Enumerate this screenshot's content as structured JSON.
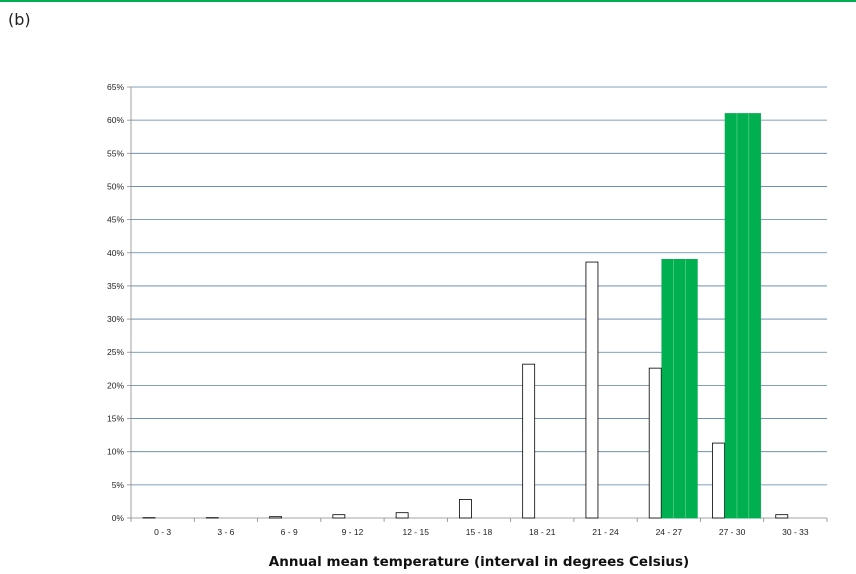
{
  "panel_label": "(b)",
  "chart_data": {
    "type": "bar",
    "title": "",
    "xlabel": "Annual mean temperature (interval in degrees Celsius)",
    "ylabel": "",
    "ylim": [
      0,
      65
    ],
    "y_ticks": [
      0,
      5,
      10,
      15,
      20,
      25,
      30,
      35,
      40,
      45,
      50,
      55,
      60,
      65
    ],
    "y_tick_labels": [
      "0%",
      "5%",
      "10%",
      "15%",
      "20%",
      "25%",
      "30%",
      "35%",
      "40%",
      "45%",
      "50%",
      "55%",
      "60%",
      "65%"
    ],
    "grid": true,
    "categories": [
      "0 - 3",
      "3 - 6",
      "6 - 9",
      "9 - 12",
      "12 - 15",
      "15 - 18",
      "18 - 21",
      "21 - 24",
      "24 - 27",
      "27 - 30",
      "30 - 33"
    ],
    "series": [
      {
        "fill": "#ffffff",
        "stroke": "#000000",
        "values": [
          0.05,
          0.05,
          0.2,
          0.5,
          0.8,
          2.8,
          23.2,
          38.6,
          22.6,
          11.3,
          0.5
        ]
      },
      {
        "fill": "#00b050",
        "stroke": "#00b050",
        "values": [
          0,
          0,
          0,
          0,
          0,
          0,
          0,
          0,
          39.0,
          61.0,
          0
        ]
      }
    ],
    "colors": {
      "grid": "#5b7fa6",
      "axis": "#888888",
      "accent": "#00b050"
    }
  }
}
